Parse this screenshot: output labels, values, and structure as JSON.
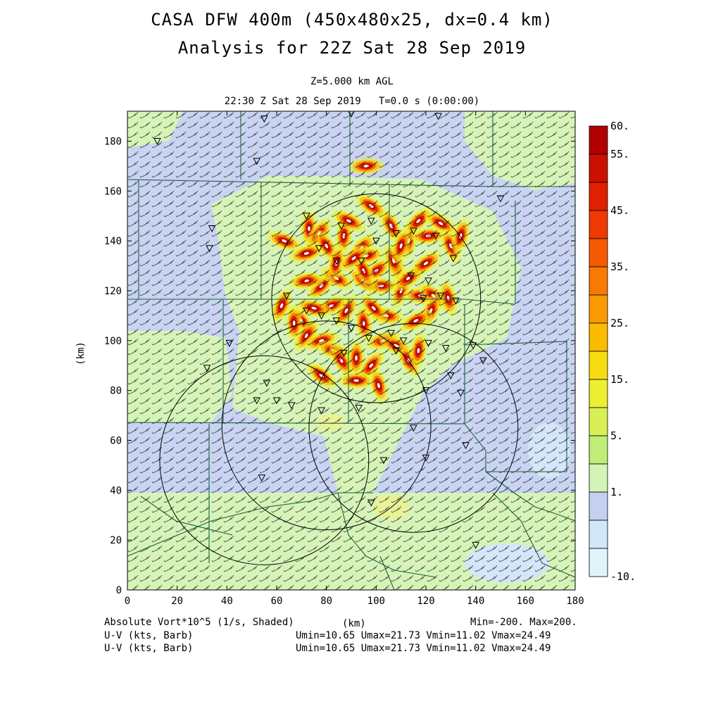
{
  "title": {
    "line1": "CASA DFW 400m (450x480x25, dx=0.4 km)",
    "line2": "Analysis for 22Z Sat 28 Sep 2019"
  },
  "level_label": "Z=5.000 km AGL",
  "time_label": "22:30 Z Sat 28 Sep 2019   T=0.0 s (0:00:00)",
  "axes": {
    "x_label": "(km)",
    "y_label": "(km)",
    "x_ticks": [
      "0",
      "20",
      "40",
      "60",
      "80",
      "100",
      "120",
      "140",
      "160",
      "180"
    ],
    "y_ticks": [
      "0",
      "20",
      "40",
      "60",
      "80",
      "100",
      "120",
      "140",
      "160",
      "180"
    ],
    "x_range": [
      0,
      180
    ],
    "y_range": [
      0,
      192
    ]
  },
  "colorbar": {
    "labels": [
      "60.",
      "55.",
      "45.",
      "35.",
      "25.",
      "15.",
      "5.",
      "1.",
      "-10."
    ],
    "colors": [
      "#b00000",
      "#cc1000",
      "#e02000",
      "#ee3a00",
      "#f55a00",
      "#f87a00",
      "#fa9a00",
      "#fbbc00",
      "#f6dc10",
      "#ecf030",
      "#d8f056",
      "#c0ec78",
      "#d4f4b6",
      "#c4d0f0",
      "#d2e8f8",
      "#e2f4fb"
    ]
  },
  "footer": {
    "field1": "Absolute Vort*10^5 (1/s, Shaded)",
    "field2": "U-V (kts, Barb)",
    "field3": "U-V (kts, Barb)",
    "xunit": "(km)",
    "minmax": "Min=-200. Max=200.",
    "uv1": "Umin=10.65 Umax=21.73 Vmin=11.02 Vmax=24.49",
    "uv2": "Umin=10.65 Umax=21.73 Vmin=11.02 Vmax=24.49"
  },
  "radar_rings": [
    {
      "center_km": [
        100,
        117
      ],
      "radius_km": 42
    },
    {
      "center_km": [
        80,
        66
      ],
      "radius_km": 42
    },
    {
      "center_km": [
        115,
        65
      ],
      "radius_km": 42
    },
    {
      "center_km": [
        55,
        52
      ],
      "radius_km": 42
    }
  ],
  "vortex_cells_km": [
    [
      73,
      145
    ],
    [
      77,
      143
    ],
    [
      72,
      135
    ],
    [
      63,
      140
    ],
    [
      80,
      138
    ],
    [
      87,
      142
    ],
    [
      94,
      137
    ],
    [
      96,
      134
    ],
    [
      89,
      148
    ],
    [
      106,
      146
    ],
    [
      113,
      140
    ],
    [
      117,
      148
    ],
    [
      121,
      142
    ],
    [
      126,
      147
    ],
    [
      130,
      138
    ],
    [
      134,
      142
    ],
    [
      100,
      128
    ],
    [
      102,
      122
    ],
    [
      95,
      124
    ],
    [
      108,
      130
    ],
    [
      110,
      120
    ],
    [
      113,
      125
    ],
    [
      118,
      118
    ],
    [
      123,
      118
    ],
    [
      129,
      117
    ],
    [
      122,
      112
    ],
    [
      116,
      108
    ],
    [
      104,
      110
    ],
    [
      99,
      113
    ],
    [
      95,
      107
    ],
    [
      88,
      112
    ],
    [
      82,
      114
    ],
    [
      75,
      113
    ],
    [
      70,
      108
    ],
    [
      67,
      107
    ],
    [
      72,
      102
    ],
    [
      78,
      100
    ],
    [
      83,
      96
    ],
    [
      86,
      92
    ],
    [
      92,
      93
    ],
    [
      98,
      90
    ],
    [
      103,
      100
    ],
    [
      108,
      98
    ],
    [
      113,
      92
    ],
    [
      117,
      96
    ],
    [
      78,
      122
    ],
    [
      72,
      124
    ],
    [
      84,
      125
    ],
    [
      95,
      128
    ],
    [
      84,
      131
    ],
    [
      91,
      133
    ],
    [
      96,
      170
    ],
    [
      98,
      154
    ],
    [
      107,
      132
    ],
    [
      110,
      138
    ],
    [
      120,
      131
    ],
    [
      92,
      84
    ],
    [
      78,
      86
    ],
    [
      101,
      82
    ],
    [
      62,
      114
    ]
  ],
  "stations_km": [
    [
      55,
      189
    ],
    [
      90,
      191
    ],
    [
      125,
      190
    ],
    [
      12,
      180
    ],
    [
      52,
      172
    ],
    [
      34,
      145
    ],
    [
      33,
      137
    ],
    [
      72,
      150
    ],
    [
      86,
      146
    ],
    [
      98,
      148
    ],
    [
      100,
      140
    ],
    [
      108,
      143
    ],
    [
      115,
      144
    ],
    [
      124,
      142
    ],
    [
      131,
      133
    ],
    [
      77,
      137
    ],
    [
      84,
      132
    ],
    [
      94,
      132
    ],
    [
      114,
      126
    ],
    [
      121,
      124
    ],
    [
      126,
      118
    ],
    [
      119,
      117
    ],
    [
      132,
      116
    ],
    [
      64,
      118
    ],
    [
      72,
      112
    ],
    [
      78,
      110
    ],
    [
      84,
      108
    ],
    [
      90,
      105
    ],
    [
      97,
      101
    ],
    [
      106,
      103
    ],
    [
      111,
      100
    ],
    [
      121,
      99
    ],
    [
      128,
      97
    ],
    [
      139,
      98
    ],
    [
      143,
      92
    ],
    [
      41,
      99
    ],
    [
      32,
      89
    ],
    [
      56,
      83
    ],
    [
      52,
      76
    ],
    [
      60,
      76
    ],
    [
      66,
      74
    ],
    [
      78,
      72
    ],
    [
      93,
      73
    ],
    [
      120,
      80
    ],
    [
      130,
      86
    ],
    [
      134,
      79
    ],
    [
      136,
      58
    ],
    [
      115,
      65
    ],
    [
      103,
      52
    ],
    [
      120,
      53
    ],
    [
      54,
      45
    ],
    [
      98,
      35
    ],
    [
      140,
      18
    ],
    [
      150,
      157
    ],
    [
      108,
      96
    ],
    [
      87,
      95
    ]
  ]
}
